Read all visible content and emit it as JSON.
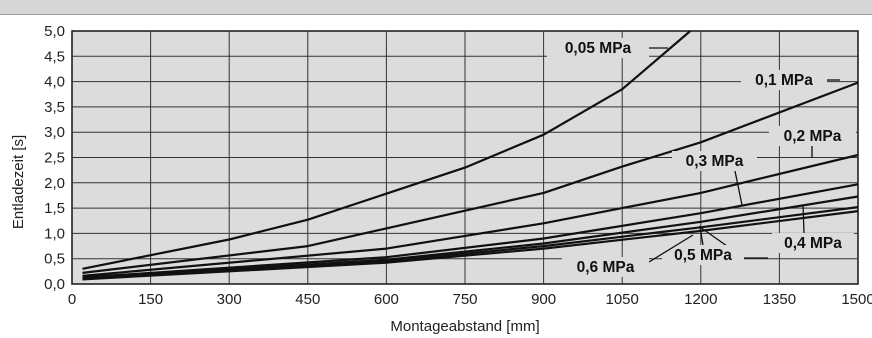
{
  "chart_data": {
    "type": "line",
    "xlabel": "Montageabstand [mm]",
    "ylabel": "Entladezeit [s]",
    "xlim": [
      0,
      1500
    ],
    "ylim": [
      0,
      5
    ],
    "grid": true,
    "x_ticks": [
      "0",
      "150",
      "300",
      "450",
      "600",
      "750",
      "900",
      "1050",
      "1200",
      "1350",
      "1500"
    ],
    "y_ticks": [
      "0,0",
      "0,5",
      "1,0",
      "1,5",
      "2,0",
      "2,5",
      "3,0",
      "3,5",
      "4,0",
      "4,5",
      "5,0"
    ],
    "series": [
      {
        "name": "0,05 MPa",
        "x": [
          20,
          300,
          450,
          750,
          900,
          1050,
          1180
        ],
        "y": [
          0.3,
          0.88,
          1.27,
          2.3,
          2.95,
          3.85,
          5.0
        ]
      },
      {
        "name": "0,1 MPa",
        "x": [
          20,
          450,
          900,
          1050,
          1200,
          1500
        ],
        "y": [
          0.22,
          0.75,
          1.8,
          2.32,
          2.8,
          3.98
        ]
      },
      {
        "name": "0,2 MPa",
        "x": [
          20,
          600,
          900,
          1200,
          1500
        ],
        "y": [
          0.16,
          0.7,
          1.2,
          1.8,
          2.55
        ]
      },
      {
        "name": "0,3 MPa",
        "x": [
          20,
          600,
          900,
          1200,
          1500
        ],
        "y": [
          0.13,
          0.53,
          0.9,
          1.4,
          1.97
        ]
      },
      {
        "name": "0,4 MPa",
        "x": [
          20,
          600,
          900,
          1200,
          1500
        ],
        "y": [
          0.11,
          0.48,
          0.8,
          1.23,
          1.73
        ]
      },
      {
        "name": "0,5 MPa",
        "x": [
          20,
          600,
          900,
          1200,
          1500
        ],
        "y": [
          0.1,
          0.45,
          0.75,
          1.12,
          1.52
        ]
      },
      {
        "name": "0,6 MPa",
        "x": [
          20,
          600,
          900,
          1200,
          1500
        ],
        "y": [
          0.09,
          0.42,
          0.7,
          1.05,
          1.44
        ]
      }
    ]
  }
}
